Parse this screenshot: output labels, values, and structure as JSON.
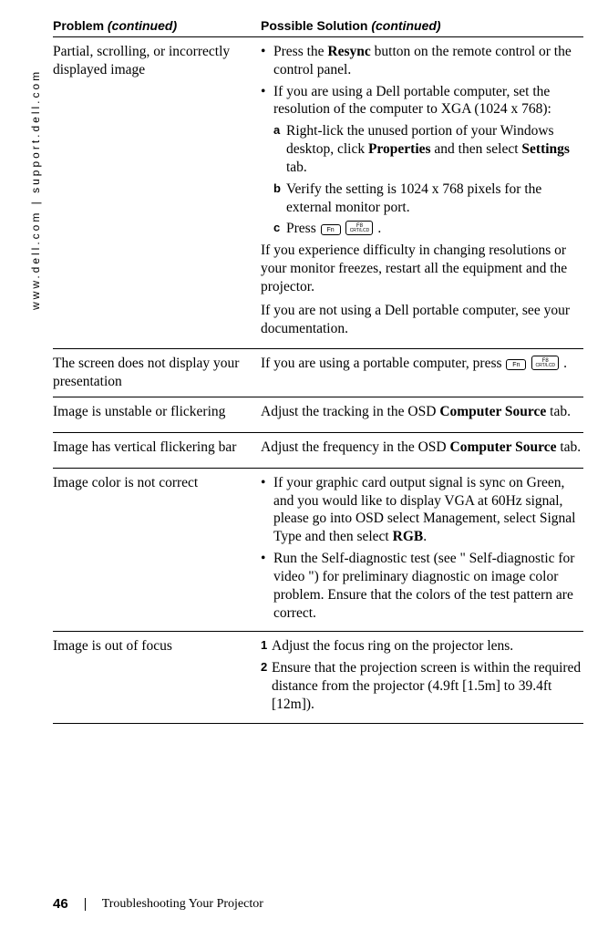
{
  "side_url": "www.dell.com | support.dell.com",
  "headers": {
    "problem_label": "Problem ",
    "problem_cont": "(continued)",
    "solution_label": "Possible Solution ",
    "solution_cont": "(continued)"
  },
  "rows": [
    {
      "problem": "Partial, scrolling, or incorrectly displayed image",
      "solution_html": [
        {
          "type": "bullet",
          "text_parts": [
            "Press the ",
            {
              "b": "Resync"
            },
            " button on the remote control or the control panel."
          ]
        },
        {
          "type": "bullet",
          "text_parts": [
            "If you are using a Dell portable computer, set the resolution of the computer to XGA (1024 x 768):"
          ]
        },
        {
          "type": "sub",
          "mark": "a",
          "text_parts": [
            "Right-lick the unused portion of your Windows desktop, click ",
            {
              "b": "Properties"
            },
            " and then select ",
            {
              "b": "Settings"
            },
            " tab."
          ]
        },
        {
          "type": "sub",
          "mark": "b",
          "text_parts": [
            "Verify the setting is 1024 x 768 pixels for the external monitor port."
          ]
        },
        {
          "type": "sub",
          "mark": "c",
          "text_parts": [
            "Press ",
            {
              "key": "Fn"
            },
            " ",
            {
              "keyw": "F8\nCRT/LCD"
            },
            " ."
          ]
        },
        {
          "type": "para",
          "text_parts": [
            "If you experience difficulty in changing resolutions or your monitor freezes, restart all the equipment and the projector."
          ]
        },
        {
          "type": "para",
          "text_parts": [
            "If you are not using a Dell portable computer, see your documentation."
          ]
        }
      ]
    },
    {
      "problem": "The screen does not display your presentation",
      "solution_html": [
        {
          "type": "para",
          "text_parts": [
            "If you are using a portable computer, press ",
            {
              "key": "Fn"
            },
            " ",
            {
              "keyw": "F8\nCRT/LCD"
            },
            " ."
          ]
        }
      ]
    },
    {
      "problem": "Image is unstable or flickering",
      "solution_html": [
        {
          "type": "para",
          "text_parts": [
            "Adjust the tracking in the OSD ",
            {
              "b": "Computer Source"
            },
            " tab."
          ]
        }
      ]
    },
    {
      "problem": "Image has vertical flickering bar",
      "solution_html": [
        {
          "type": "para",
          "text_parts": [
            "Adjust the frequency in the OSD ",
            {
              "b": "Computer Source"
            },
            " tab."
          ]
        }
      ]
    },
    {
      "problem": "Image color is not correct",
      "solution_html": [
        {
          "type": "bullet",
          "text_parts": [
            "If your graphic card output signal is sync on Green, and you would like to display VGA at 60Hz signal, please go into OSD select Management, select Signal Type and then select ",
            {
              "b": "RGB"
            },
            "."
          ]
        },
        {
          "type": "bullet",
          "text_parts": [
            "Run the Self-diagnostic test (see \" Self-diagnostic for video \") for preliminary diagnostic on image color problem. Ensure that the colors of the test pattern are correct."
          ]
        }
      ]
    },
    {
      "problem": "Image is out of focus",
      "solution_html": [
        {
          "type": "num",
          "mark": "1",
          "text_parts": [
            "Adjust the focus ring on the projector lens."
          ]
        },
        {
          "type": "num",
          "mark": "2",
          "text_parts": [
            "Ensure that the projection screen is within the required distance from the projector (4.9ft [1.5m] to 39.4ft [12m])."
          ]
        }
      ]
    }
  ],
  "footer": {
    "page": "46",
    "chapter": "Troubleshooting Your Projector"
  }
}
